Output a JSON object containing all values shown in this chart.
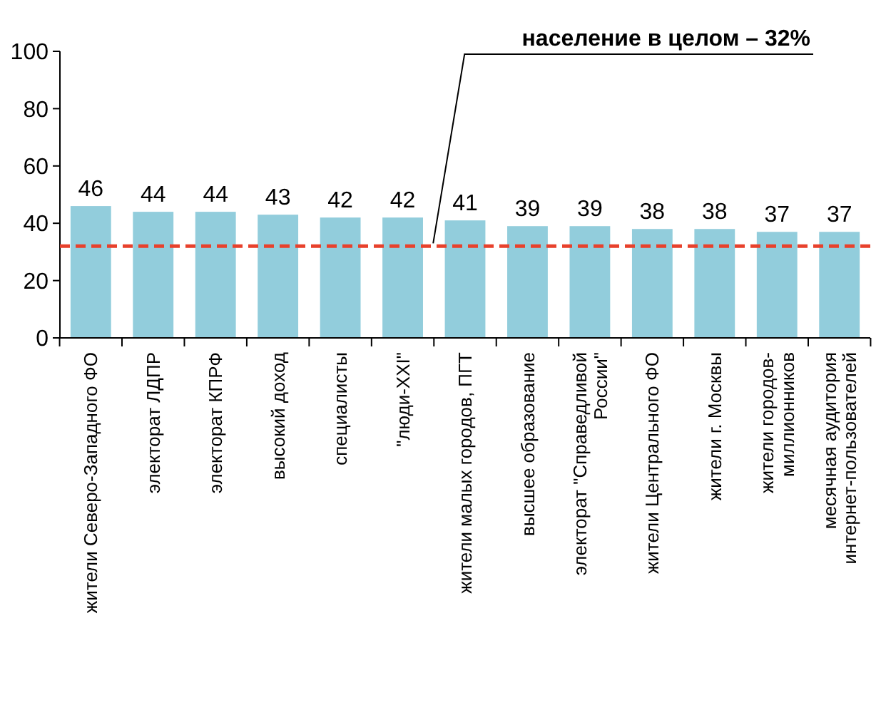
{
  "chart_data": {
    "type": "bar",
    "categories": [
      "жители Северо-Западного ФО",
      "электорат ЛДПР",
      "электорат КПРФ",
      "высокий доход",
      "специалисты",
      "\"люди-XXI\"",
      "жители малых городов, ПГТ",
      "высшее образование",
      "электорат \"Справедливой\nРоссии\"",
      "жители Центрального ФО",
      "жители г. Москвы",
      "жители городов-\nмиллионников",
      "месячная аудитория\nинтернет-пользователей"
    ],
    "values": [
      46,
      44,
      44,
      43,
      42,
      42,
      41,
      39,
      39,
      38,
      38,
      37,
      37
    ],
    "color": "#92cddc",
    "ylim": [
      0,
      100
    ],
    "yticks": [
      0,
      20,
      40,
      60,
      80,
      100
    ],
    "data_labels": true,
    "ref_lines": [
      {
        "axis": "y",
        "value": 32,
        "label": "население в целом – 32%",
        "color": "#e8412c",
        "line_style": "dashed"
      }
    ]
  }
}
